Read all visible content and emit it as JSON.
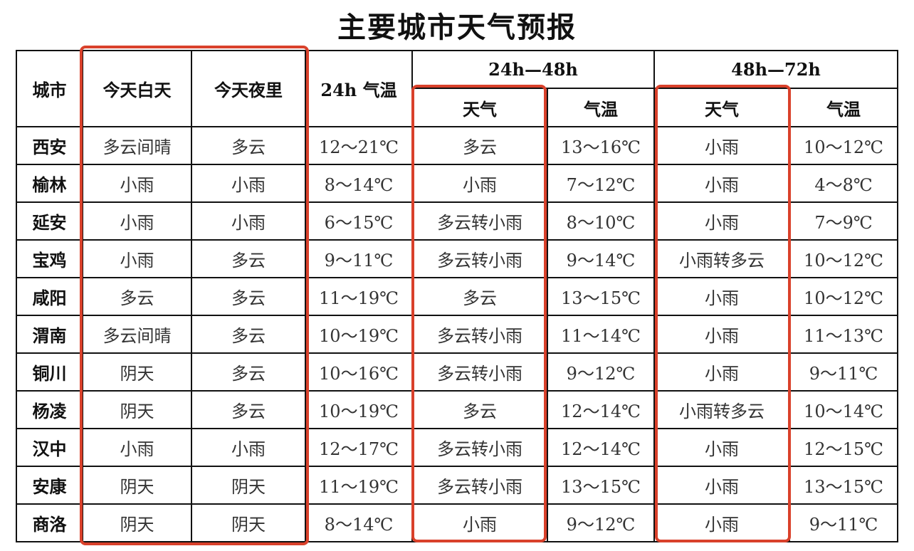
{
  "title": "主要城市天气预报",
  "header": {
    "city": "城市",
    "today_day": "今天白天",
    "today_night": "今天夜里",
    "temp_24h": "24h 气温",
    "period_1": "24h—48h",
    "period_2": "48h—72h",
    "weather": "天气",
    "temp": "气温"
  },
  "highlight_color": "#d9412b",
  "rows": [
    [
      "西安",
      "多云间晴",
      "多云",
      "12～21℃",
      "多云",
      "13～16℃",
      "小雨",
      "10～12℃"
    ],
    [
      "榆林",
      "小雨",
      "小雨",
      "8～14℃",
      "小雨",
      "7～12℃",
      "小雨",
      "4～8℃"
    ],
    [
      "延安",
      "小雨",
      "小雨",
      "6～15℃",
      "多云转小雨",
      "8～10℃",
      "小雨",
      "7～9℃"
    ],
    [
      "宝鸡",
      "小雨",
      "多云",
      "9～11℃",
      "多云转小雨",
      "9～14℃",
      "小雨转多云",
      "10～12℃"
    ],
    [
      "咸阳",
      "多云",
      "多云",
      "11～19℃",
      "多云",
      "13～15℃",
      "小雨",
      "10～12℃"
    ],
    [
      "渭南",
      "多云间晴",
      "多云",
      "10～19℃",
      "多云转小雨",
      "11～14℃",
      "小雨",
      "11～13℃"
    ],
    [
      "铜川",
      "阴天",
      "多云",
      "10～16℃",
      "多云转小雨",
      "9～12℃",
      "小雨",
      "9～11℃"
    ],
    [
      "杨凌",
      "阴天",
      "多云",
      "10～19℃",
      "多云",
      "12～14℃",
      "小雨转多云",
      "10～14℃"
    ],
    [
      "汉中",
      "小雨",
      "小雨",
      "12～17℃",
      "多云转小雨",
      "12～14℃",
      "小雨",
      "12～15℃"
    ],
    [
      "安康",
      "阴天",
      "阴天",
      "11～19℃",
      "多云转小雨",
      "13～15℃",
      "小雨",
      "13～15℃"
    ],
    [
      "商洛",
      "阴天",
      "阴天",
      "8～14℃",
      "小雨",
      "9～12℃",
      "小雨",
      "9～11℃"
    ]
  ]
}
